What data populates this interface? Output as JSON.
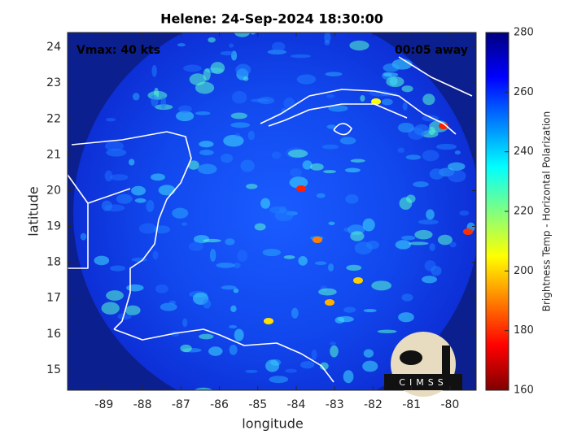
{
  "chart_data": {
    "type": "image",
    "title": "Helene: 24-Sep-2024 18:30:00",
    "annotations": [
      "Vmax: 40 kts",
      "00:05 away"
    ],
    "xlabel": "longitude",
    "ylabel": "latitude",
    "xlim": [
      -89.95,
      -79.32
    ],
    "ylim": [
      14.43,
      24.41
    ],
    "xticks": [
      -89,
      -88,
      -87,
      -86,
      -85,
      -84,
      -83,
      -82,
      -81,
      -80
    ],
    "yticks": [
      15,
      16,
      17,
      18,
      19,
      20,
      21,
      22,
      23,
      24
    ],
    "colorbar": {
      "label": "Brightness Temp - Horizontal Polarization",
      "lim": [
        160,
        280
      ],
      "ticks": [
        160,
        180,
        200,
        220,
        240,
        260,
        280
      ],
      "colormap": "jet"
    },
    "logo": "CIMSS"
  }
}
